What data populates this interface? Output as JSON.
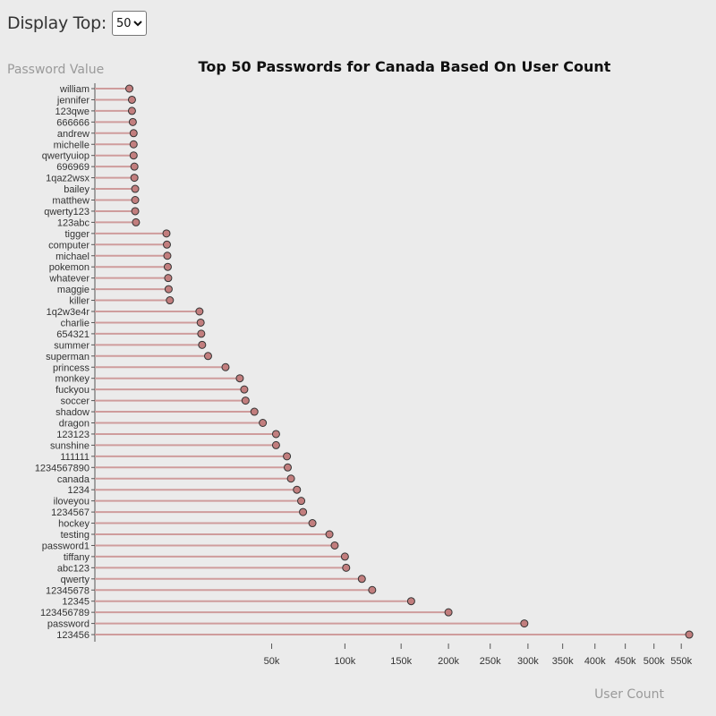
{
  "controls": {
    "display_label": "Display Top:",
    "selected": "50"
  },
  "chart_data": {
    "type": "lollipop",
    "title": "Top 50 Passwords for Canada Based On User Count",
    "ylabel": "Password Value",
    "xlabel": "User Count",
    "x_scale": "sqrt",
    "xlim": [
      0,
      570000
    ],
    "x_ticks": [
      50000,
      100000,
      150000,
      200000,
      250000,
      300000,
      350000,
      400000,
      450000,
      500000,
      550000
    ],
    "x_tick_labels": [
      "50k",
      "100k",
      "150k",
      "200k",
      "250k",
      "300k",
      "350k",
      "400k",
      "450k",
      "500k",
      "550k"
    ],
    "grid": false,
    "colors": {
      "marker": "#c27e7e",
      "stem": "#cf9c9c",
      "marker_stroke": "#333333"
    },
    "categories": [
      "william",
      "jennifer",
      "123qwe",
      "666666",
      "andrew",
      "michelle",
      "qwertyuiop",
      "696969",
      "1qaz2wsx",
      "bailey",
      "matthew",
      "qwerty123",
      "123abc",
      "tigger",
      "computer",
      "michael",
      "pokemon",
      "whatever",
      "maggie",
      "killer",
      "1q2w3e4r",
      "charlie",
      "654321",
      "summer",
      "superman",
      "princess",
      "monkey",
      "fuckyou",
      "soccer",
      "shadow",
      "dragon",
      "123123",
      "sunshine",
      "111111",
      "1234567890",
      "canada",
      "1234",
      "iloveyou",
      "1234567",
      "hockey",
      "testing",
      "password1",
      "tiffany",
      "abc123",
      "qwerty",
      "12345678",
      "12345",
      "123456789",
      "password",
      "123456"
    ],
    "values": [
      1900,
      2200,
      2200,
      2300,
      2400,
      2400,
      2400,
      2500,
      2500,
      2600,
      2600,
      2600,
      2700,
      8200,
      8300,
      8400,
      8500,
      8600,
      8700,
      9000,
      17500,
      17900,
      18100,
      18400,
      20500,
      27300,
      33600,
      35700,
      36300,
      40700,
      45100,
      52500,
      52500,
      59000,
      59500,
      61500,
      65300,
      68100,
      69300,
      75700,
      88000,
      92000,
      100000,
      101000,
      114000,
      123000,
      160000,
      200000,
      295000,
      565000
    ]
  }
}
